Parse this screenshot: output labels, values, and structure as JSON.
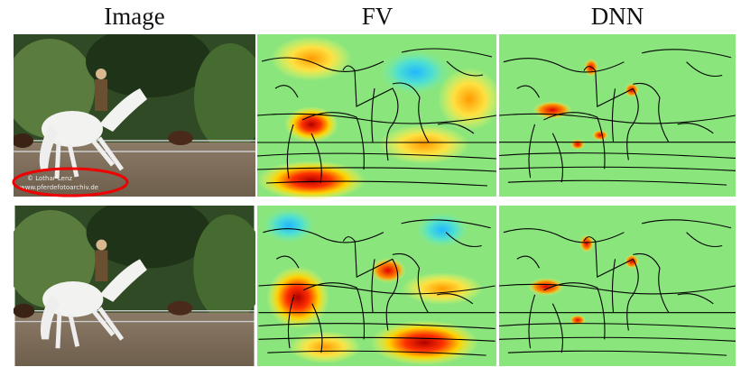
{
  "headers": {
    "image": "Image",
    "fv": "FV",
    "dnn": "DNN"
  },
  "watermark": [
    "© Lothar Lenz",
    "www.pferdefotoarchiv.de"
  ]
}
